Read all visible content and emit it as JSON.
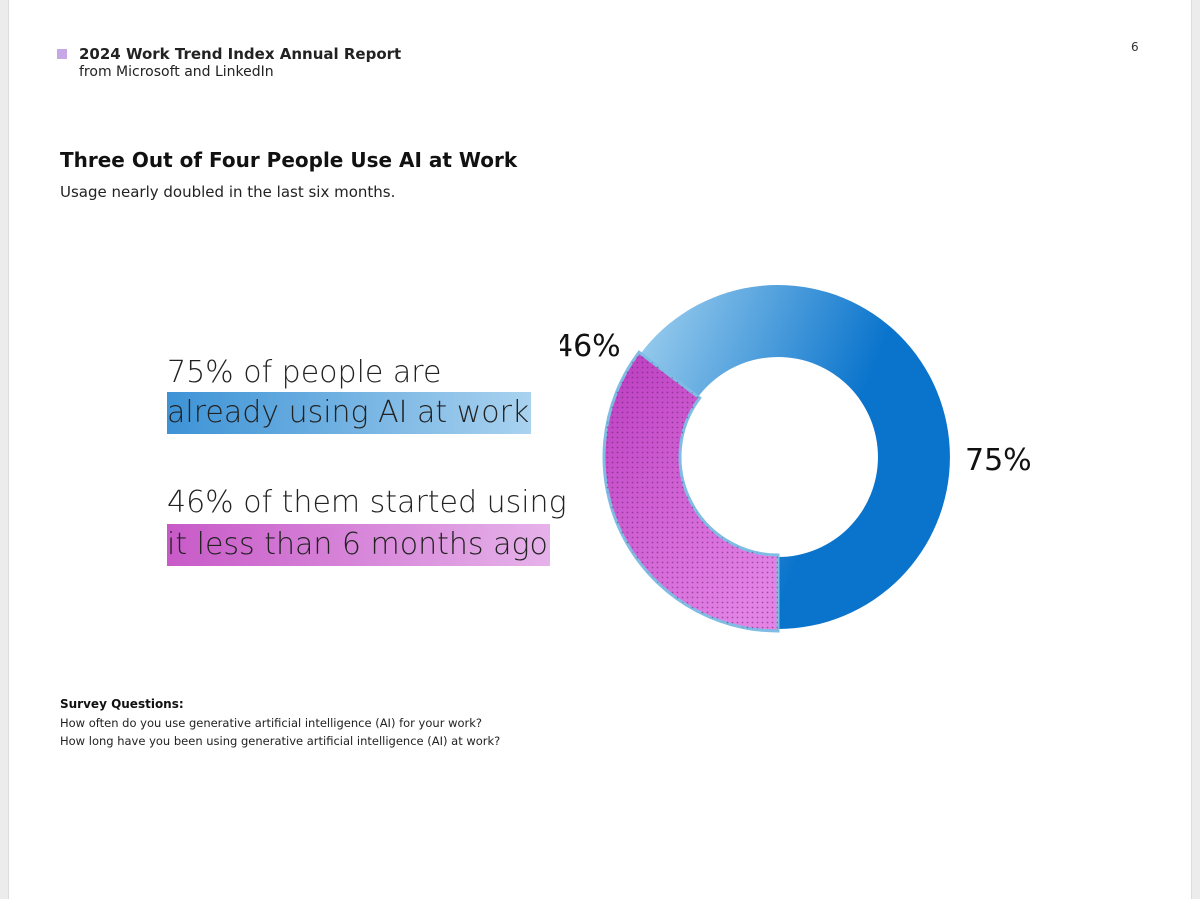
{
  "report": {
    "title": "2024 Work Trend Index Annual Report",
    "source": "from Microsoft and LinkedIn",
    "page_number": "6",
    "accent_color": "#c7a8e6"
  },
  "headline": {
    "title": "Three Out of Four People Use AI at Work",
    "subtitle": "Usage nearly doubled in the last six months."
  },
  "stats": {
    "line1a": "75% of people are",
    "line1b": "already using AI at work",
    "line2a": "46% of them started using",
    "line2b": "it less than 6 months ago"
  },
  "chart_data": {
    "type": "donut",
    "series": [
      {
        "value": 75,
        "value_label": "75%",
        "color_start": "#9fd0ef",
        "color_end": "#0a74cc"
      },
      {
        "value": 46,
        "value_label": "46%",
        "color_start": "#bb3cc0",
        "color_end": "#e383e6",
        "pattern": "dotted"
      }
    ],
    "remainder_color": "#e6e6e6"
  },
  "survey": {
    "heading": "Survey Questions:",
    "questions": [
      "How often do you use generative artificial intelligence (AI) for your work?",
      "How long have you been using generative artificial intelligence (AI) at work?"
    ]
  }
}
